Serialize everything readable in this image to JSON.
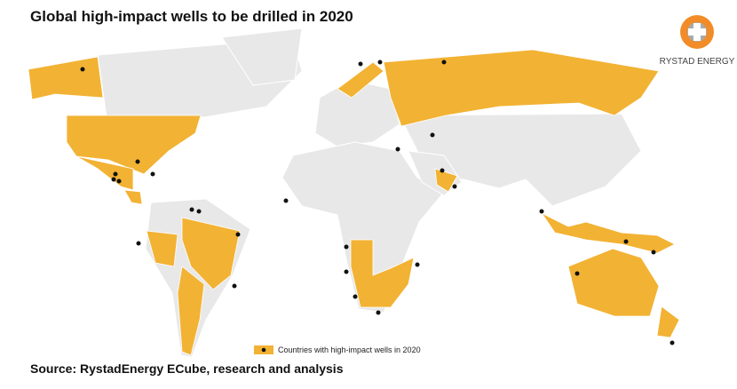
{
  "header": {
    "title": "Global high-impact wells to be drilled in 2020"
  },
  "logo": {
    "text": "RYSTAD ENERGY"
  },
  "legend": {
    "label": "Countries with high-impact wells in 2020"
  },
  "footer": {
    "source": "Source: RystadEnergy ECube, research and analysis"
  }
}
